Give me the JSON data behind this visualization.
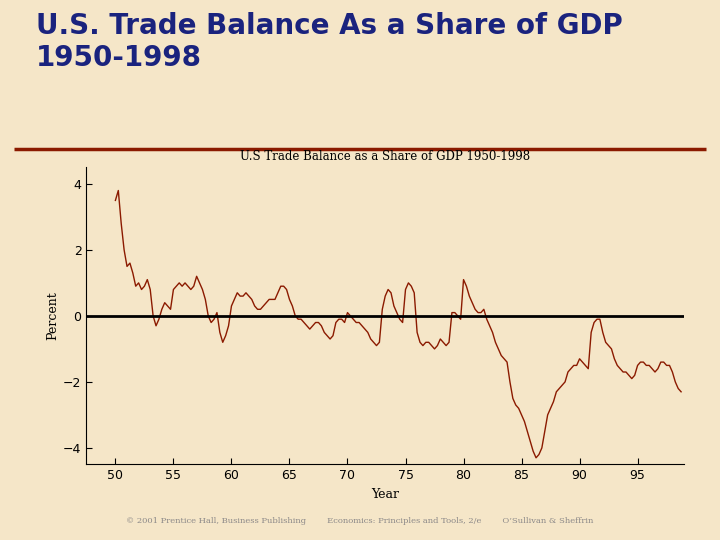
{
  "title_main": "U.S. Trade Balance As a Share of GDP\n1950-1998",
  "chart_title": "U.S Trade Balance as a Share of GDP 1950-1998",
  "xlabel": "Year",
  "ylabel": "Percent",
  "background_color": "#F5E6C8",
  "slide_background": "#F5E6C8",
  "title_color": "#1a237e",
  "line_color": "#8B1A00",
  "divider_color": "#8B1A00",
  "footer_color": "#8B8888",
  "footer_text": "© 2001 Prentice Hall, Business Publishing        Economics: Principles and Tools, 2/e        O’Sullivan & Sheffrin",
  "xlim": [
    47.5,
    99
  ],
  "ylim": [
    -4.5,
    4.5
  ],
  "xticks": [
    50,
    55,
    60,
    65,
    70,
    75,
    80,
    85,
    90,
    95
  ],
  "yticks": [
    -4,
    -2,
    0,
    2,
    4
  ],
  "years": [
    50,
    50.25,
    50.5,
    50.75,
    51,
    51.25,
    51.5,
    51.75,
    52,
    52.25,
    52.5,
    52.75,
    53,
    53.25,
    53.5,
    53.75,
    54,
    54.25,
    54.5,
    54.75,
    55,
    55.25,
    55.5,
    55.75,
    56,
    56.25,
    56.5,
    56.75,
    57,
    57.25,
    57.5,
    57.75,
    58,
    58.25,
    58.5,
    58.75,
    59,
    59.25,
    59.5,
    59.75,
    60,
    60.25,
    60.5,
    60.75,
    61,
    61.25,
    61.5,
    61.75,
    62,
    62.25,
    62.5,
    62.75,
    63,
    63.25,
    63.5,
    63.75,
    64,
    64.25,
    64.5,
    64.75,
    65,
    65.25,
    65.5,
    65.75,
    66,
    66.25,
    66.5,
    66.75,
    67,
    67.25,
    67.5,
    67.75,
    68,
    68.25,
    68.5,
    68.75,
    69,
    69.25,
    69.5,
    69.75,
    70,
    70.25,
    70.5,
    70.75,
    71,
    71.25,
    71.5,
    71.75,
    72,
    72.25,
    72.5,
    72.75,
    73,
    73.25,
    73.5,
    73.75,
    74,
    74.25,
    74.5,
    74.75,
    75,
    75.25,
    75.5,
    75.75,
    76,
    76.25,
    76.5,
    76.75,
    77,
    77.25,
    77.5,
    77.75,
    78,
    78.25,
    78.5,
    78.75,
    79,
    79.25,
    79.5,
    79.75,
    80,
    80.25,
    80.5,
    80.75,
    81,
    81.25,
    81.5,
    81.75,
    82,
    82.25,
    82.5,
    82.75,
    83,
    83.25,
    83.5,
    83.75,
    84,
    84.25,
    84.5,
    84.75,
    85,
    85.25,
    85.5,
    85.75,
    86,
    86.25,
    86.5,
    86.75,
    87,
    87.25,
    87.5,
    87.75,
    88,
    88.25,
    88.5,
    88.75,
    89,
    89.25,
    89.5,
    89.75,
    90,
    90.25,
    90.5,
    90.75,
    91,
    91.25,
    91.5,
    91.75,
    92,
    92.25,
    92.5,
    92.75,
    93,
    93.25,
    93.5,
    93.75,
    94,
    94.25,
    94.5,
    94.75,
    95,
    95.25,
    95.5,
    95.75,
    96,
    96.25,
    96.5,
    96.75,
    97,
    97.25,
    97.5,
    97.75,
    98,
    98.25,
    98.5,
    98.75
  ],
  "values": [
    3.5,
    3.8,
    2.8,
    2.0,
    1.5,
    1.6,
    1.3,
    0.9,
    1.0,
    0.8,
    0.9,
    1.1,
    0.8,
    0.0,
    -0.3,
    -0.1,
    0.2,
    0.4,
    0.3,
    0.2,
    0.8,
    0.9,
    1.0,
    0.9,
    1.0,
    0.9,
    0.8,
    0.9,
    1.2,
    1.0,
    0.8,
    0.5,
    0.0,
    -0.2,
    -0.1,
    0.1,
    -0.5,
    -0.8,
    -0.6,
    -0.3,
    0.3,
    0.5,
    0.7,
    0.6,
    0.6,
    0.7,
    0.6,
    0.5,
    0.3,
    0.2,
    0.2,
    0.3,
    0.4,
    0.5,
    0.5,
    0.5,
    0.7,
    0.9,
    0.9,
    0.8,
    0.5,
    0.3,
    0.0,
    -0.1,
    -0.1,
    -0.2,
    -0.3,
    -0.4,
    -0.3,
    -0.2,
    -0.2,
    -0.3,
    -0.5,
    -0.6,
    -0.7,
    -0.6,
    -0.2,
    -0.1,
    -0.1,
    -0.2,
    0.1,
    0.0,
    -0.1,
    -0.2,
    -0.2,
    -0.3,
    -0.4,
    -0.5,
    -0.7,
    -0.8,
    -0.9,
    -0.8,
    0.2,
    0.6,
    0.8,
    0.7,
    0.3,
    0.1,
    -0.1,
    -0.2,
    0.8,
    1.0,
    0.9,
    0.7,
    -0.5,
    -0.8,
    -0.9,
    -0.8,
    -0.8,
    -0.9,
    -1.0,
    -0.9,
    -0.7,
    -0.8,
    -0.9,
    -0.8,
    0.1,
    0.1,
    0.0,
    -0.1,
    1.1,
    0.9,
    0.6,
    0.4,
    0.2,
    0.1,
    0.1,
    0.2,
    -0.1,
    -0.3,
    -0.5,
    -0.8,
    -1.0,
    -1.2,
    -1.3,
    -1.4,
    -2.0,
    -2.5,
    -2.7,
    -2.8,
    -3.0,
    -3.2,
    -3.5,
    -3.8,
    -4.1,
    -4.3,
    -4.2,
    -4.0,
    -3.5,
    -3.0,
    -2.8,
    -2.6,
    -2.3,
    -2.2,
    -2.1,
    -2.0,
    -1.7,
    -1.6,
    -1.5,
    -1.5,
    -1.3,
    -1.4,
    -1.5,
    -1.6,
    -0.5,
    -0.2,
    -0.1,
    -0.1,
    -0.5,
    -0.8,
    -0.9,
    -1.0,
    -1.3,
    -1.5,
    -1.6,
    -1.7,
    -1.7,
    -1.8,
    -1.9,
    -1.8,
    -1.5,
    -1.4,
    -1.4,
    -1.5,
    -1.5,
    -1.6,
    -1.7,
    -1.6,
    -1.4,
    -1.4,
    -1.5,
    -1.5,
    -1.7,
    -2.0,
    -2.2,
    -2.3
  ]
}
